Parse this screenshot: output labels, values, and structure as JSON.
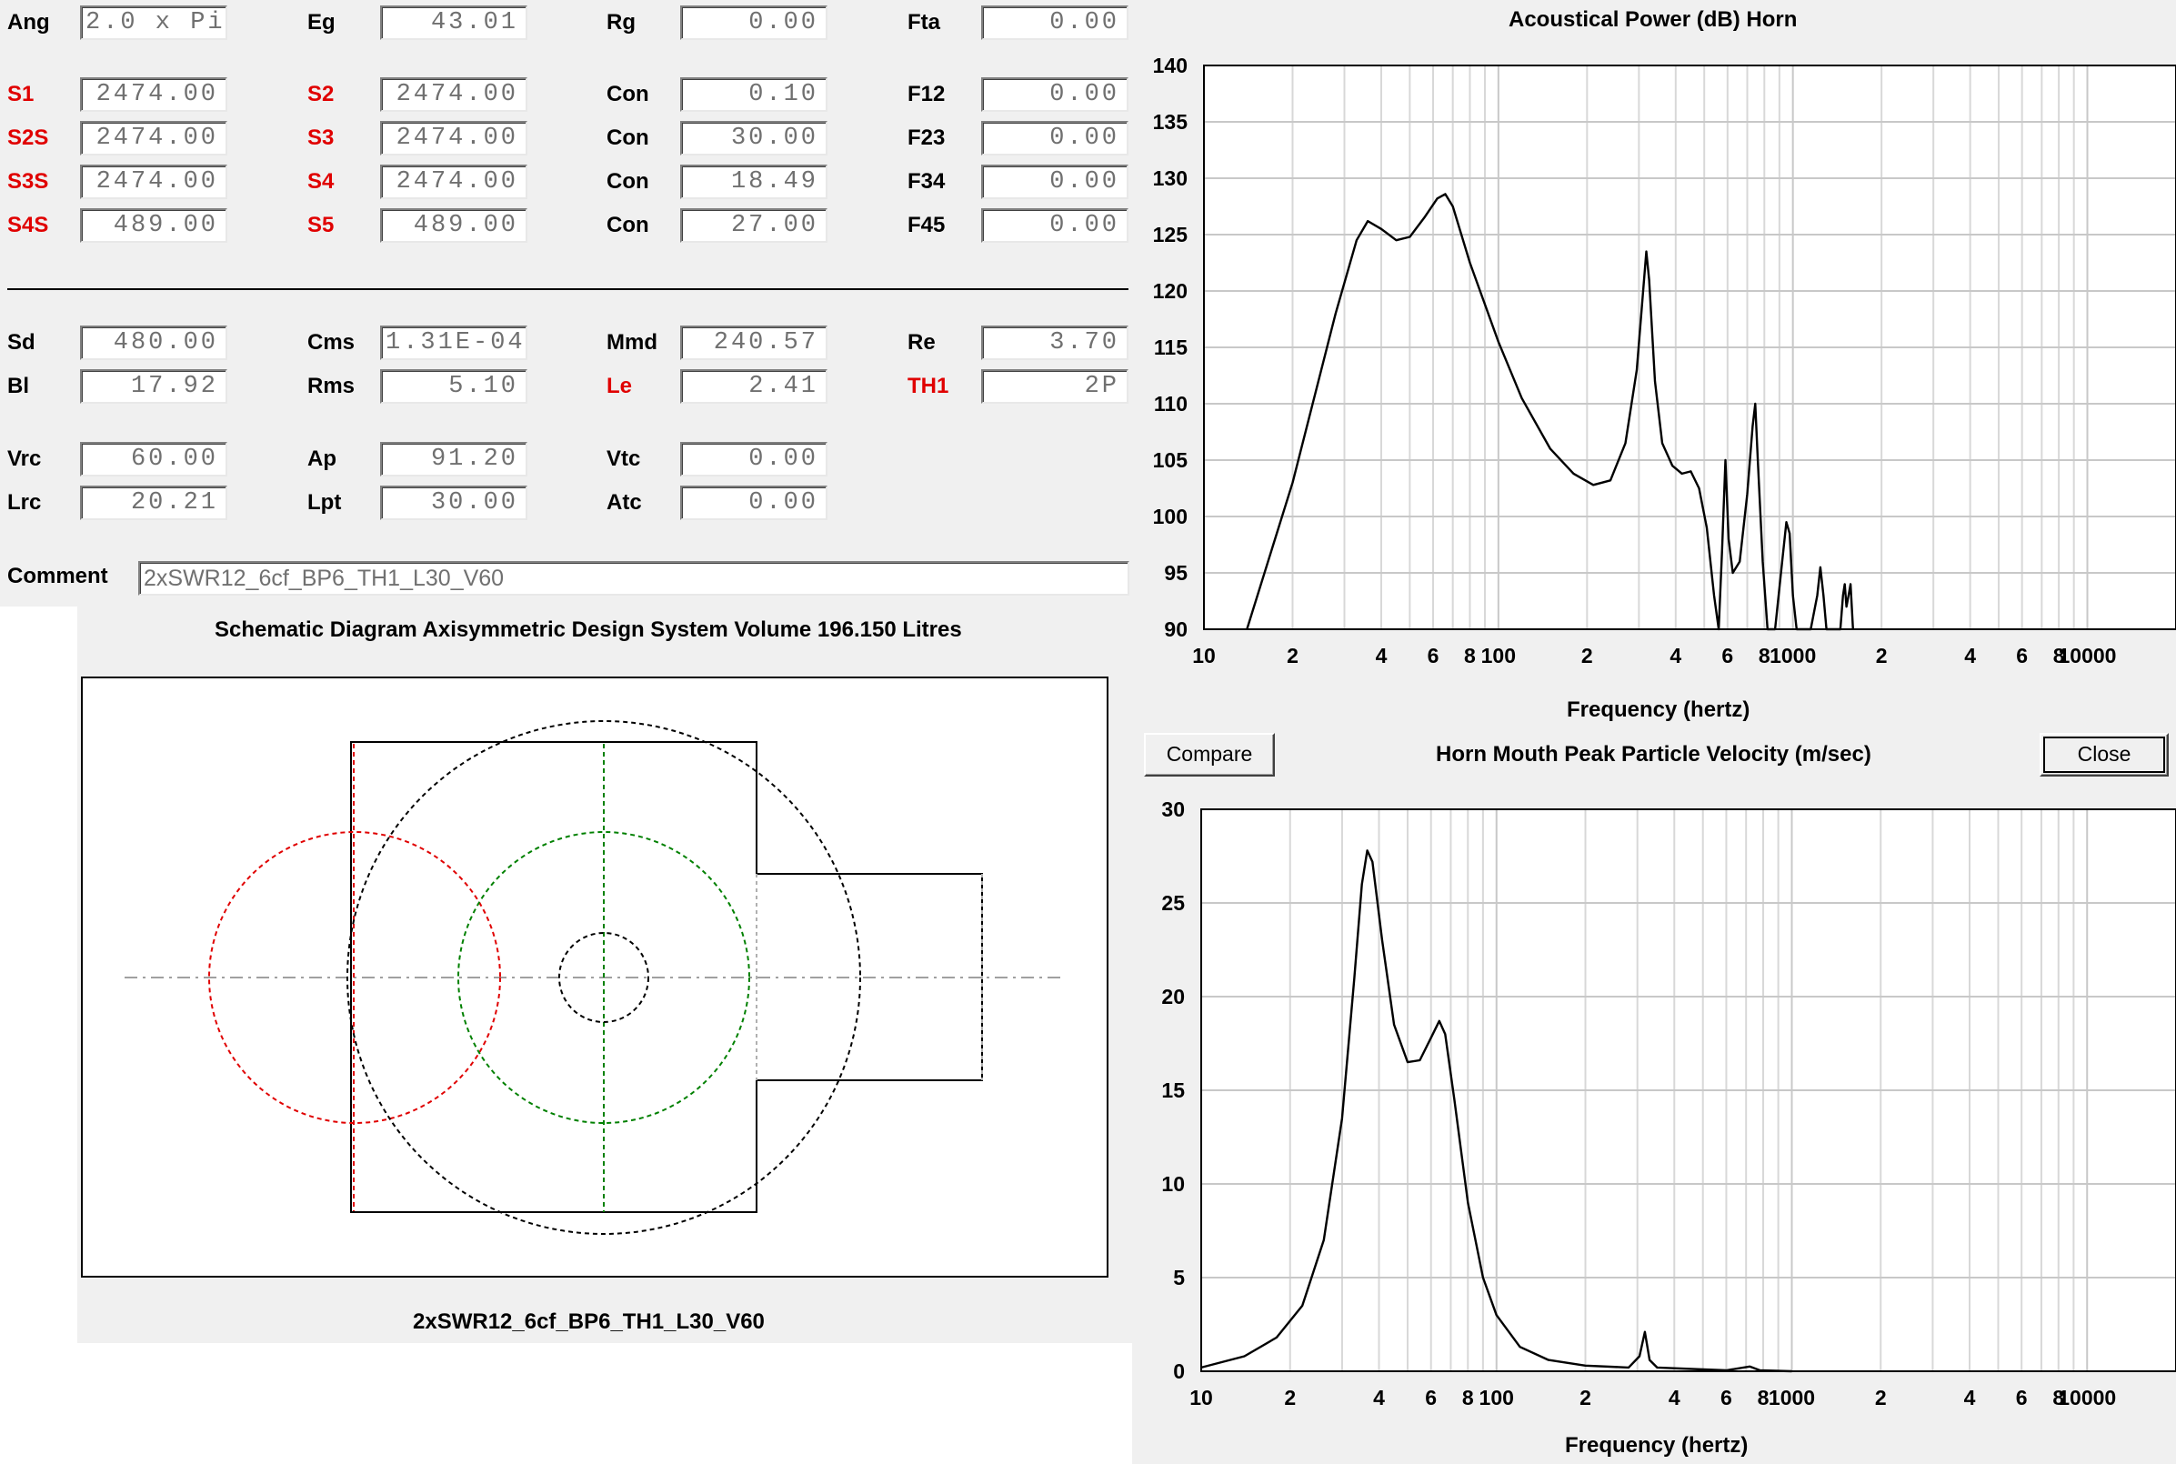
{
  "params": {
    "row1": [
      {
        "label": "Ang",
        "value": "2.0 x Pi",
        "red": false,
        "align": "left"
      },
      {
        "label": "Eg",
        "value": "43.01",
        "red": false
      },
      {
        "label": "Rg",
        "value": "0.00",
        "red": false
      },
      {
        "label": "Fta",
        "value": "0.00",
        "red": false
      }
    ],
    "row2": [
      {
        "label": "S1",
        "value": "2474.00",
        "red": true
      },
      {
        "label": "S2",
        "value": "2474.00",
        "red": true
      },
      {
        "label": "Con",
        "value": "0.10",
        "red": false
      },
      {
        "label": "F12",
        "value": "0.00",
        "red": false
      }
    ],
    "row3": [
      {
        "label": "S2S",
        "value": "2474.00",
        "red": true
      },
      {
        "label": "S3",
        "value": "2474.00",
        "red": true
      },
      {
        "label": "Con",
        "value": "30.00",
        "red": false
      },
      {
        "label": "F23",
        "value": "0.00",
        "red": false
      }
    ],
    "row4": [
      {
        "label": "S3S",
        "value": "2474.00",
        "red": true
      },
      {
        "label": "S4",
        "value": "2474.00",
        "red": true
      },
      {
        "label": "Con",
        "value": "18.49",
        "red": false
      },
      {
        "label": "F34",
        "value": "0.00",
        "red": false
      }
    ],
    "row5": [
      {
        "label": "S4S",
        "value": "489.00",
        "red": true
      },
      {
        "label": "S5",
        "value": "489.00",
        "red": true
      },
      {
        "label": "Con",
        "value": "27.00",
        "red": false
      },
      {
        "label": "F45",
        "value": "0.00",
        "red": false
      }
    ],
    "row6": [
      {
        "label": "Sd",
        "value": "480.00",
        "red": false
      },
      {
        "label": "Cms",
        "value": "1.31E-04",
        "red": false,
        "align": "left"
      },
      {
        "label": "Mmd",
        "value": "240.57",
        "red": false
      },
      {
        "label": "Re",
        "value": "3.70",
        "red": false
      }
    ],
    "row7": [
      {
        "label": "Bl",
        "value": "17.92",
        "red": false
      },
      {
        "label": "Rms",
        "value": "5.10",
        "red": false
      },
      {
        "label": "Le",
        "value": "2.41",
        "red": true
      },
      {
        "label": "TH1",
        "value": "2P",
        "red": true
      }
    ],
    "row8": [
      {
        "label": "Vrc",
        "value": "60.00",
        "red": false
      },
      {
        "label": "Ap",
        "value": "91.20",
        "red": false
      },
      {
        "label": "Vtc",
        "value": "0.00",
        "red": false
      }
    ],
    "row9": [
      {
        "label": "Lrc",
        "value": "20.21",
        "red": false
      },
      {
        "label": "Lpt",
        "value": "30.00",
        "red": false
      },
      {
        "label": "Atc",
        "value": "0.00",
        "red": false
      }
    ]
  },
  "comment": {
    "label": "Comment",
    "value": "2xSWR12_6cf_BP6_TH1_L30_V60"
  },
  "schematic": {
    "title": "Schematic Diagram   Axisymmetric Design   System Volume 196.150 Litres",
    "caption": "2xSWR12_6cf_BP6_TH1_L30_V60",
    "colors": {
      "driver": "#e00000",
      "chamber": "#008000",
      "outline": "#000000",
      "axis": "#a0a0a0"
    }
  },
  "buttons": {
    "compare": "Compare",
    "close": "Close"
  },
  "chart_data": [
    {
      "type": "line",
      "title": "Acoustical Power (dB)   Horn",
      "xlabel": "Frequency (hertz)",
      "ylabel": "",
      "xscale": "log",
      "xlim": [
        10,
        20000
      ],
      "ylim": [
        90,
        140
      ],
      "yticks": [
        90,
        95,
        100,
        105,
        110,
        115,
        120,
        125,
        130,
        135,
        140
      ],
      "xtick_labels": [
        {
          "x": 10,
          "label": "10"
        },
        {
          "x": 20,
          "label": "2"
        },
        {
          "x": 40,
          "label": "4"
        },
        {
          "x": 60,
          "label": "6"
        },
        {
          "x": 80,
          "label": "8"
        },
        {
          "x": 100,
          "label": "100"
        },
        {
          "x": 200,
          "label": "2"
        },
        {
          "x": 400,
          "label": "4"
        },
        {
          "x": 600,
          "label": "6"
        },
        {
          "x": 800,
          "label": "8"
        },
        {
          "x": 1000,
          "label": "1000"
        },
        {
          "x": 2000,
          "label": "2"
        },
        {
          "x": 4000,
          "label": "4"
        },
        {
          "x": 6000,
          "label": "6"
        },
        {
          "x": 8000,
          "label": "8"
        },
        {
          "x": 10000,
          "label": "10000"
        },
        {
          "x": 20000,
          "label": "2"
        }
      ],
      "grid": true,
      "series": [
        {
          "values": [
            [
              14,
              90
            ],
            [
              20,
              103
            ],
            [
              28,
              118
            ],
            [
              33,
              124.5
            ],
            [
              36,
              126.2
            ],
            [
              40,
              125.5
            ],
            [
              45,
              124.5
            ],
            [
              50,
              124.8
            ],
            [
              56,
              126.5
            ],
            [
              62,
              128.2
            ],
            [
              66,
              128.6
            ],
            [
              70,
              127.5
            ],
            [
              80,
              122.5
            ],
            [
              100,
              115.5
            ],
            [
              120,
              110.5
            ],
            [
              150,
              106
            ],
            [
              180,
              103.8
            ],
            [
              210,
              102.8
            ],
            [
              240,
              103.2
            ],
            [
              270,
              106.5
            ],
            [
              295,
              113
            ],
            [
              310,
              120
            ],
            [
              318,
              123.5
            ],
            [
              325,
              121
            ],
            [
              340,
              112
            ],
            [
              360,
              106.5
            ],
            [
              390,
              104.5
            ],
            [
              420,
              103.8
            ],
            [
              450,
              104
            ],
            [
              480,
              102.5
            ],
            [
              510,
              99
            ],
            [
              540,
              93
            ],
            [
              560,
              90
            ],
            [
              575,
              97
            ],
            [
              590,
              105
            ],
            [
              605,
              98
            ],
            [
              625,
              95
            ],
            [
              660,
              96
            ],
            [
              700,
              102
            ],
            [
              730,
              108
            ],
            [
              745,
              110
            ],
            [
              760,
              105
            ],
            [
              790,
              96
            ],
            [
              820,
              90
            ],
            [
              870,
              90
            ],
            [
              920,
              96
            ],
            [
              950,
              99.5
            ],
            [
              975,
              98.5
            ],
            [
              1000,
              93
            ],
            [
              1030,
              90
            ],
            [
              1150,
              90
            ],
            [
              1210,
              93
            ],
            [
              1240,
              95.5
            ],
            [
              1270,
              93
            ],
            [
              1300,
              90
            ],
            [
              1450,
              90
            ],
            [
              1480,
              93
            ],
            [
              1500,
              94
            ],
            [
              1520,
              92
            ],
            [
              1545,
              93
            ],
            [
              1570,
              94
            ],
            [
              1600,
              90
            ]
          ]
        }
      ]
    },
    {
      "type": "line",
      "title": "Horn Mouth Peak Particle Velocity (m/sec)",
      "xlabel": "Frequency (hertz)",
      "ylabel": "",
      "xscale": "log",
      "xlim": [
        10,
        20000
      ],
      "ylim": [
        0,
        30
      ],
      "yticks": [
        0,
        5,
        10,
        15,
        20,
        25,
        30
      ],
      "xtick_labels": [
        {
          "x": 10,
          "label": "10"
        },
        {
          "x": 20,
          "label": "2"
        },
        {
          "x": 40,
          "label": "4"
        },
        {
          "x": 60,
          "label": "6"
        },
        {
          "x": 80,
          "label": "8"
        },
        {
          "x": 100,
          "label": "100"
        },
        {
          "x": 200,
          "label": "2"
        },
        {
          "x": 400,
          "label": "4"
        },
        {
          "x": 600,
          "label": "6"
        },
        {
          "x": 800,
          "label": "8"
        },
        {
          "x": 1000,
          "label": "1000"
        },
        {
          "x": 2000,
          "label": "2"
        },
        {
          "x": 4000,
          "label": "4"
        },
        {
          "x": 6000,
          "label": "6"
        },
        {
          "x": 8000,
          "label": "8"
        },
        {
          "x": 10000,
          "label": "10000"
        },
        {
          "x": 20000,
          "label": "2"
        }
      ],
      "grid": true,
      "series": [
        {
          "values": [
            [
              10,
              0.2
            ],
            [
              14,
              0.8
            ],
            [
              18,
              1.8
            ],
            [
              22,
              3.5
            ],
            [
              26,
              7
            ],
            [
              30,
              13.5
            ],
            [
              33,
              21
            ],
            [
              35,
              26
            ],
            [
              36.5,
              27.8
            ],
            [
              38,
              27.2
            ],
            [
              41,
              23
            ],
            [
              45,
              18.5
            ],
            [
              50,
              16.5
            ],
            [
              55,
              16.6
            ],
            [
              60,
              17.8
            ],
            [
              64,
              18.7
            ],
            [
              67,
              18
            ],
            [
              72,
              14.5
            ],
            [
              80,
              9
            ],
            [
              90,
              5
            ],
            [
              100,
              3
            ],
            [
              120,
              1.3
            ],
            [
              150,
              0.6
            ],
            [
              200,
              0.3
            ],
            [
              280,
              0.2
            ],
            [
              305,
              0.8
            ],
            [
              318,
              2.1
            ],
            [
              330,
              0.6
            ],
            [
              350,
              0.2
            ],
            [
              600,
              0.05
            ],
            [
              720,
              0.25
            ],
            [
              780,
              0.05
            ],
            [
              1000,
              0
            ]
          ]
        }
      ]
    }
  ]
}
